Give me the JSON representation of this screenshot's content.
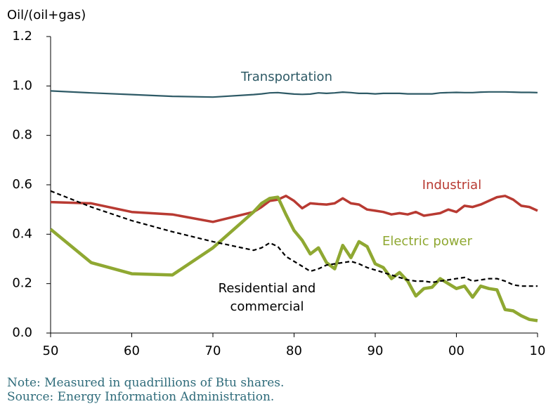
{
  "chart_data": {
    "type": "line",
    "ylabel": "Oil/(oil+gas)",
    "x": [
      1950,
      1955,
      1960,
      1965,
      1970,
      1975,
      1976,
      1977,
      1978,
      1979,
      1980,
      1981,
      1982,
      1983,
      1984,
      1985,
      1986,
      1987,
      1988,
      1989,
      1990,
      1991,
      1992,
      1993,
      1994,
      1995,
      1996,
      1997,
      1998,
      1999,
      2000,
      2001,
      2002,
      2003,
      2004,
      2005,
      2006,
      2007,
      2008,
      2009,
      2010
    ],
    "series": [
      {
        "name": "Transportation",
        "color": "#2e5a66",
        "values": [
          0.98,
          0.972,
          0.965,
          0.958,
          0.955,
          0.965,
          0.968,
          0.972,
          0.973,
          0.97,
          0.967,
          0.966,
          0.967,
          0.972,
          0.97,
          0.972,
          0.975,
          0.973,
          0.97,
          0.97,
          0.968,
          0.97,
          0.97,
          0.97,
          0.968,
          0.968,
          0.968,
          0.968,
          0.972,
          0.973,
          0.974,
          0.973,
          0.973,
          0.975,
          0.976,
          0.976,
          0.976,
          0.975,
          0.974,
          0.974,
          0.973
        ]
      },
      {
        "name": "Industrial",
        "color": "#b83a32",
        "values": [
          0.53,
          0.525,
          0.49,
          0.48,
          0.45,
          0.49,
          0.51,
          0.535,
          0.54,
          0.555,
          0.535,
          0.505,
          0.525,
          0.522,
          0.52,
          0.525,
          0.545,
          0.525,
          0.52,
          0.5,
          0.495,
          0.49,
          0.48,
          0.485,
          0.48,
          0.49,
          0.475,
          0.48,
          0.485,
          0.5,
          0.49,
          0.515,
          0.51,
          0.52,
          0.535,
          0.55,
          0.555,
          0.54,
          0.515,
          0.51,
          0.495
        ]
      },
      {
        "name": "Electric power",
        "color": "#8fa832",
        "values": [
          0.42,
          0.285,
          0.24,
          0.235,
          0.345,
          0.49,
          0.525,
          0.545,
          0.55,
          0.48,
          0.415,
          0.375,
          0.32,
          0.345,
          0.285,
          0.26,
          0.355,
          0.305,
          0.37,
          0.35,
          0.28,
          0.265,
          0.22,
          0.245,
          0.21,
          0.15,
          0.18,
          0.185,
          0.22,
          0.2,
          0.18,
          0.19,
          0.145,
          0.19,
          0.18,
          0.175,
          0.095,
          0.09,
          0.07,
          0.055,
          0.05
        ]
      },
      {
        "name": "Residential and commercial",
        "color": "#000000",
        "dashed": true,
        "values": [
          0.575,
          0.51,
          0.455,
          0.41,
          0.37,
          0.335,
          0.345,
          0.365,
          0.35,
          0.31,
          0.29,
          0.27,
          0.25,
          0.26,
          0.275,
          0.28,
          0.285,
          0.29,
          0.28,
          0.265,
          0.255,
          0.245,
          0.235,
          0.225,
          0.215,
          0.21,
          0.21,
          0.205,
          0.21,
          0.215,
          0.22,
          0.225,
          0.21,
          0.215,
          0.22,
          0.22,
          0.21,
          0.195,
          0.19,
          0.19,
          0.19
        ]
      }
    ],
    "xlim": [
      1950,
      2010
    ],
    "xticks": [
      {
        "value": 1950,
        "label": "50"
      },
      {
        "value": 1960,
        "label": "60"
      },
      {
        "value": 1970,
        "label": "70"
      },
      {
        "value": 1980,
        "label": "80"
      },
      {
        "value": 1990,
        "label": "90"
      },
      {
        "value": 2000,
        "label": "00"
      },
      {
        "value": 2010,
        "label": "10"
      }
    ],
    "ylim": [
      0,
      1.2
    ],
    "yticks": [
      {
        "value": 0,
        "label": "0.0"
      },
      0.2,
      0.4,
      0.6,
      0.8,
      {
        "value": 1,
        "label": "1.0"
      },
      1.2
    ],
    "notes": [
      "Note: Measured in quadrillions of Btu shares.",
      "Source: Energy Information Administration."
    ]
  }
}
